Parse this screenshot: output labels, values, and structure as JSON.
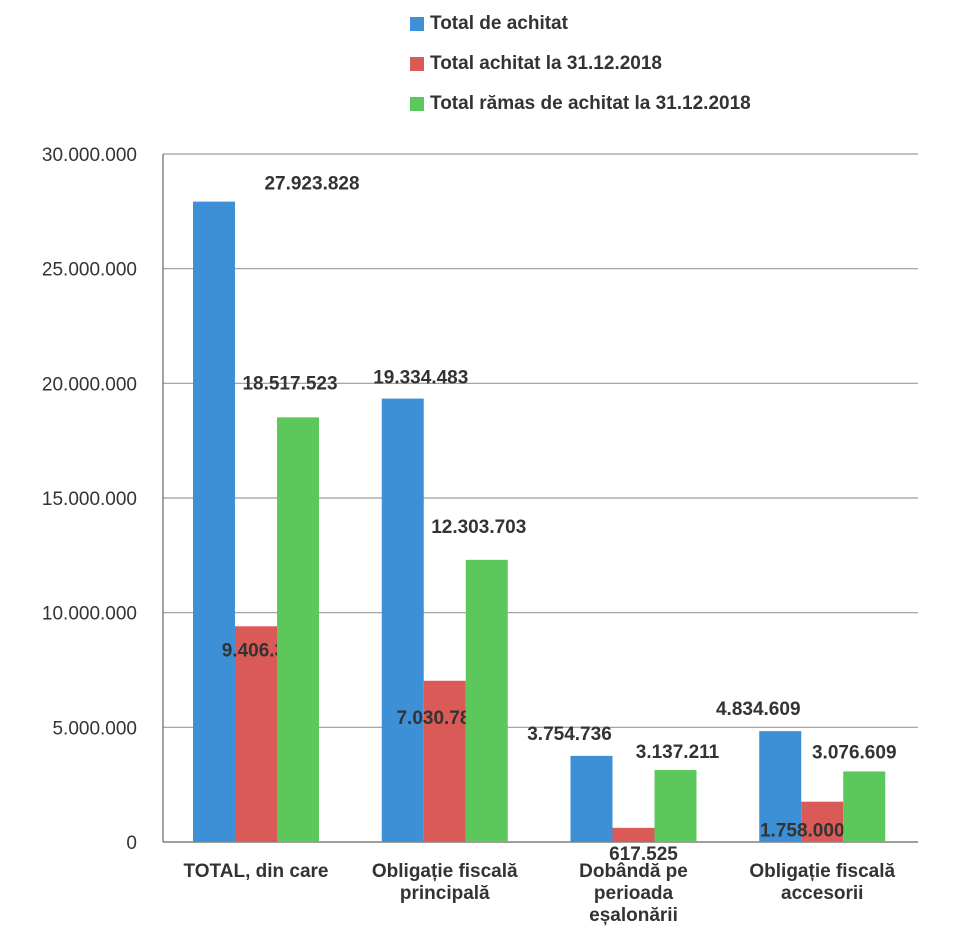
{
  "chart_data": {
    "type": "bar",
    "title": "",
    "xlabel": "",
    "ylabel": "",
    "ylim": [
      0,
      30000000
    ],
    "yticks": [
      0,
      5000000,
      10000000,
      15000000,
      20000000,
      25000000,
      30000000
    ],
    "ytick_labels": [
      "0",
      "5.000.000",
      "10.000.000",
      "15.000.000",
      "20.000.000",
      "25.000.000",
      "30.000.000"
    ],
    "grid": true,
    "legend_position": "top",
    "categories": [
      [
        "TOTAL, din care"
      ],
      [
        "Obligație fiscală",
        "principală"
      ],
      [
        "Dobândă pe",
        "perioada",
        "eșalonării"
      ],
      [
        "Obligație fiscală",
        "accesorii"
      ]
    ],
    "series": [
      {
        "name": "Total de achitat",
        "color": "#3d8fd6",
        "values": [
          27923828,
          19334483,
          3754736,
          4834609
        ],
        "labels": [
          "27.923.828",
          "19.334.483",
          "3.754.736",
          "4.834.609"
        ]
      },
      {
        "name": "Total achitat la 31.12.2018",
        "color": "#d95a57",
        "values": [
          9406305,
          7030780,
          617525,
          1758000
        ],
        "labels": [
          "9.406.305",
          "7.030.780",
          "617.525",
          "1.758.000"
        ]
      },
      {
        "name": "Total rămas de achitat la 31.12.2018",
        "color": "#5cc85c",
        "values": [
          18517523,
          12303703,
          3137211,
          3076609
        ],
        "labels": [
          "18.517.523",
          "12.303.703",
          "3.137.211",
          "3.076.609"
        ]
      }
    ]
  }
}
